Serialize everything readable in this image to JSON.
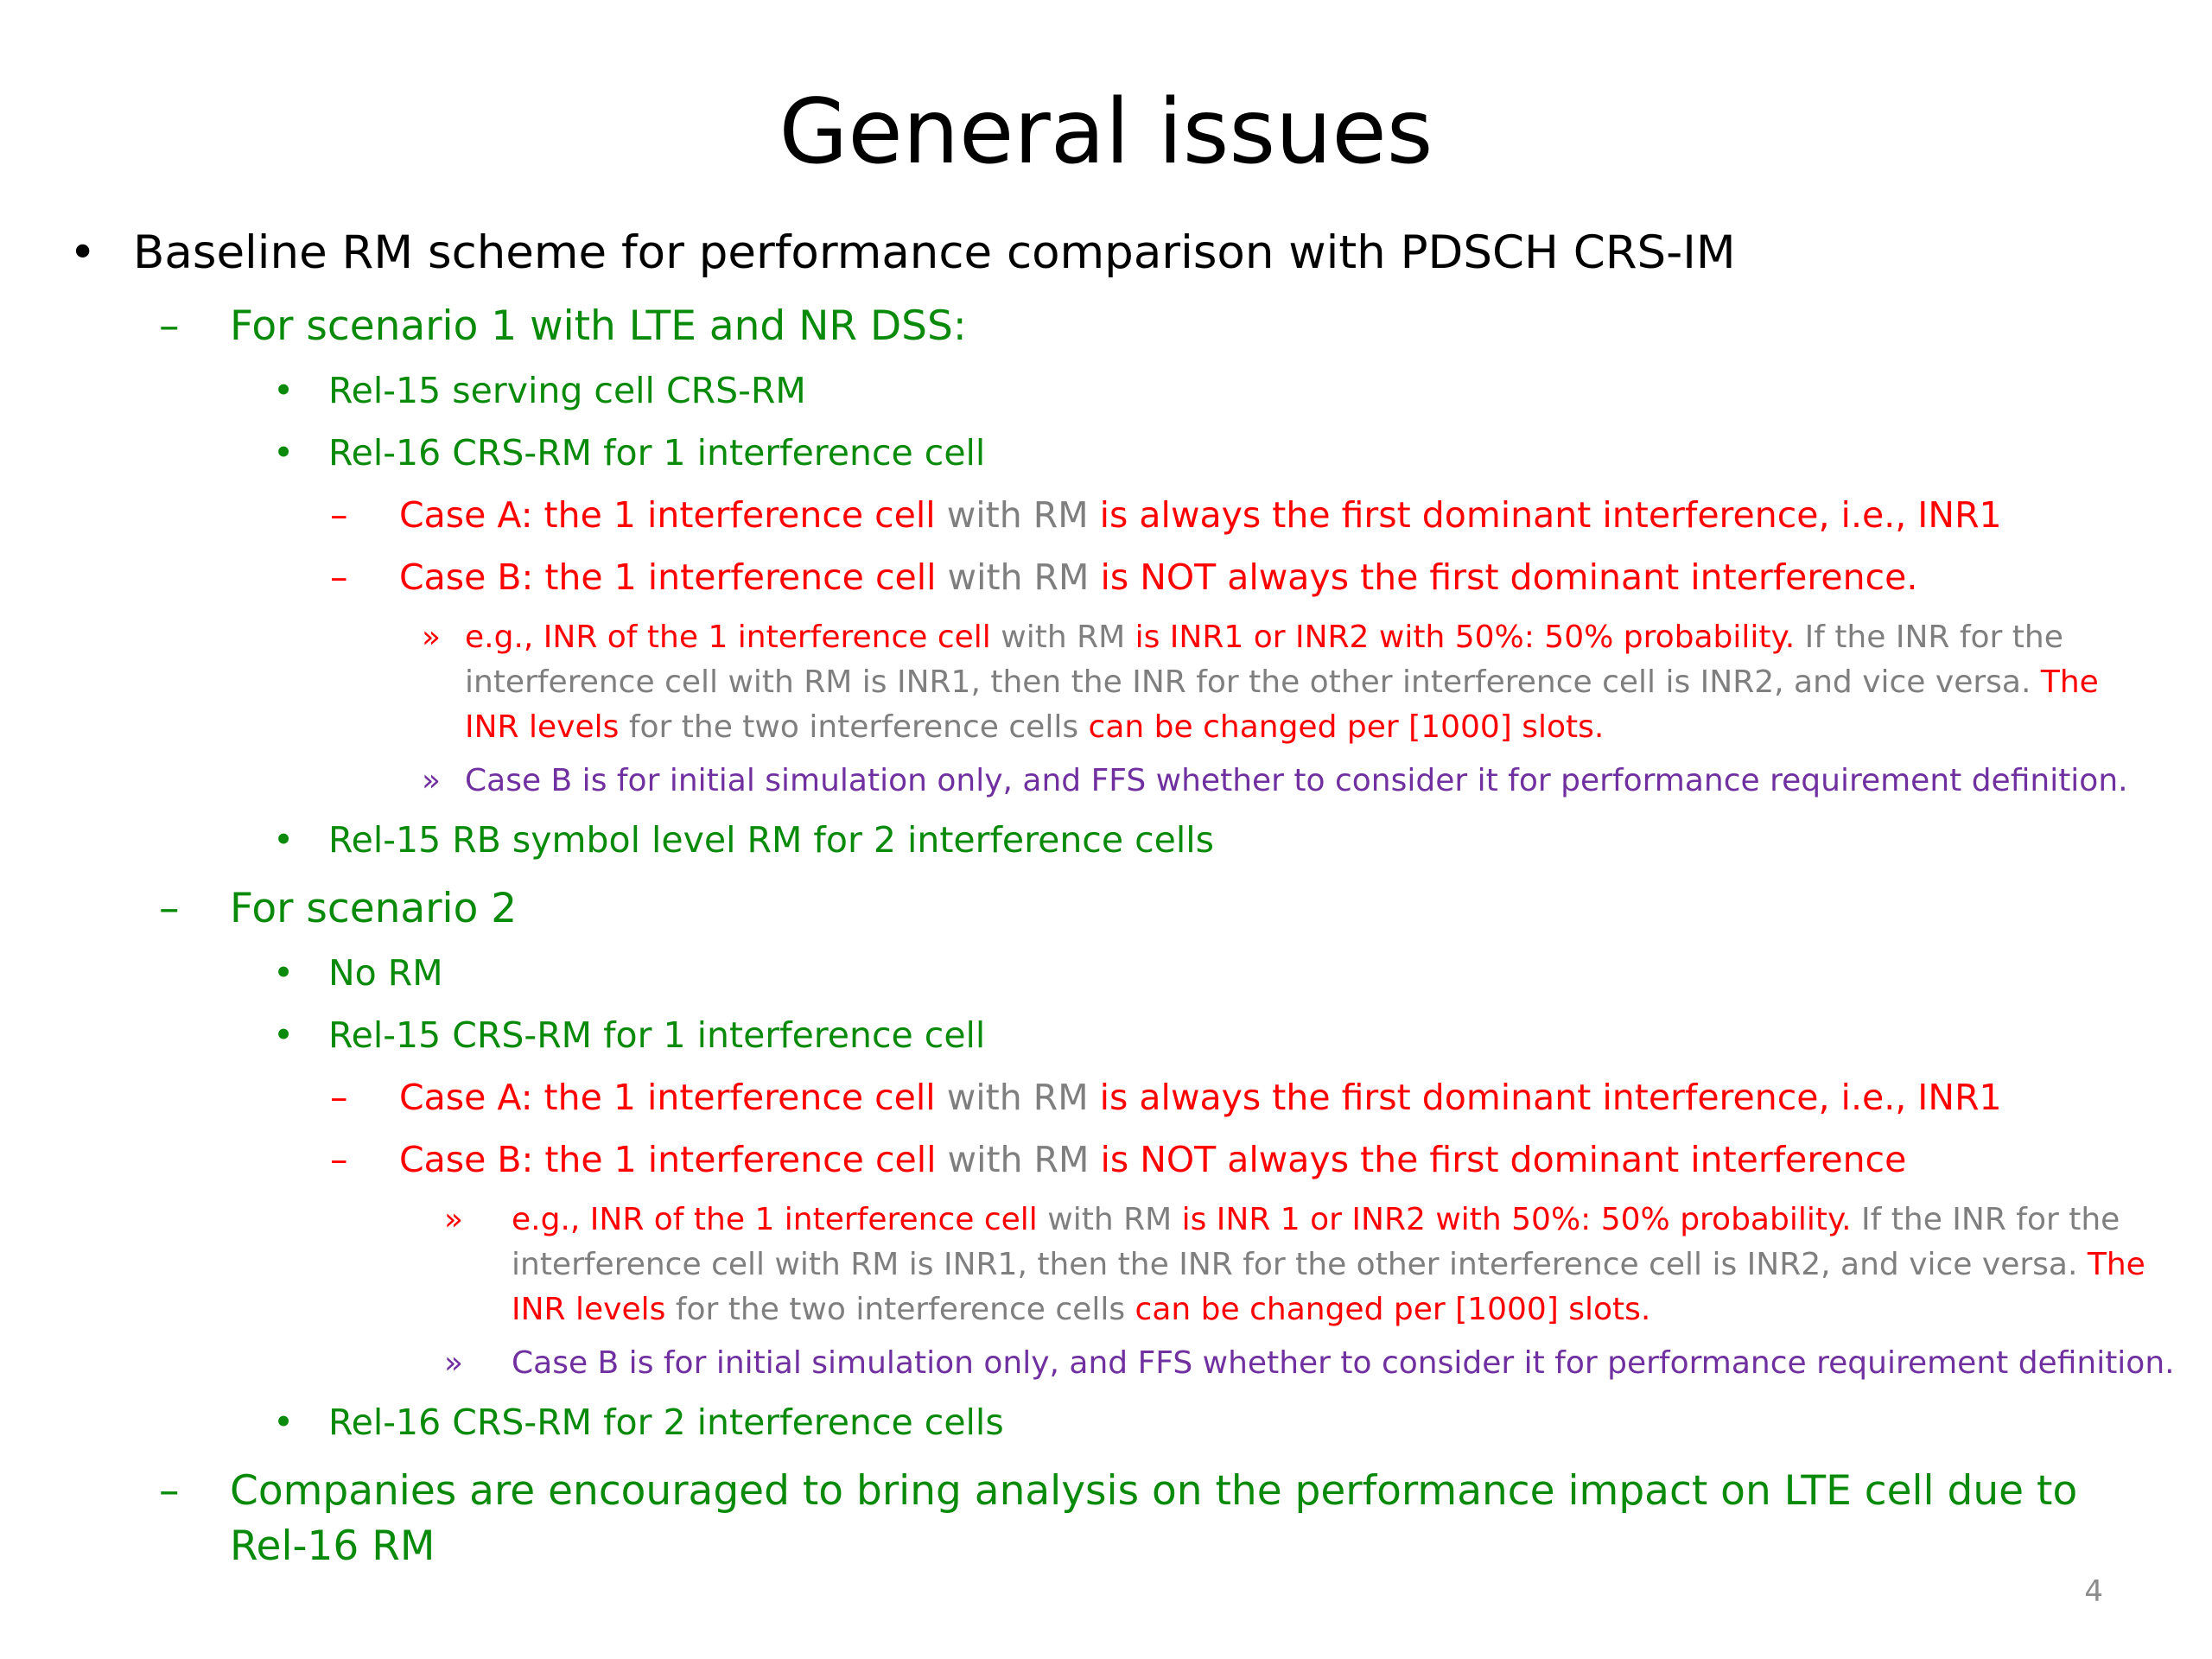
{
  "slide": {
    "title": "General issues",
    "page_number": "4",
    "markers": {
      "bullet": "•",
      "dash": "–",
      "double_chevron": "»"
    },
    "colors": {
      "green": "#0a8a0a",
      "red": "#ff0000",
      "gray": "#7f7f7f",
      "purple": "#7030a0"
    },
    "l1": "Baseline RM scheme for performance comparison with PDSCH CRS-IM",
    "s1": {
      "heading": "For scenario 1 with LTE and NR DSS:",
      "i1": "Rel-15 serving cell CRS-RM",
      "i2": "Rel-16 CRS-RM for 1 interference cell",
      "caseA": {
        "a": "Case A: the 1 interference cell",
        "b": " with RM ",
        "c": "is always the first dominant interference, i.e., INR1"
      },
      "caseB": {
        "a": "Case B: the 1 interference cell",
        "b": " with RM ",
        "c": "is NOT always the first dominant interference."
      },
      "note1": {
        "a": "e.g., INR of the 1 interference cell",
        "b": " with RM ",
        "c": "is INR1 or INR2 with 50%: 50% probability.",
        "d": " If the INR for the interference cell with RM is INR1, then the INR for the other interference cell is INR2, and vice versa. ",
        "e": "The INR levels",
        "f": " for the two interference cells ",
        "g": "can be changed per [1000] slots."
      },
      "note2": "Case B is for initial simulation only, and FFS whether to consider it for performance requirement definition.",
      "i3": "Rel-15 RB symbol level RM for 2 interference cells"
    },
    "s2": {
      "heading": "For scenario 2",
      "i1": "No RM",
      "i2": "Rel-15 CRS-RM for 1 interference cell",
      "caseA": {
        "a": "Case A: the 1 interference cell",
        "b": " with RM ",
        "c": "is always the first dominant interference, i.e., INR1"
      },
      "caseB": {
        "a": "Case B: the 1 interference cell",
        "b": " with RM ",
        "c": "is NOT always the first dominant interference"
      },
      "note1": {
        "a": "e.g., INR of the 1 interference cell",
        "b": " with RM ",
        "c": "is INR 1 or INR2 with 50%: 50% probability.",
        "d": " If the INR for the interference cell with RM is INR1, then the INR for the other interference cell is INR2, and vice versa. ",
        "e": "The INR levels",
        "f": " for the two interference cells ",
        "g": "can be changed per [1000] slots."
      },
      "note2": "Case B is for initial simulation only, and FFS whether to consider it for performance requirement definition.",
      "i3": "Rel-16 CRS-RM for 2 interference cells"
    },
    "closing": "Companies are encouraged to bring analysis on the performance impact on LTE cell due to Rel-16 RM"
  }
}
